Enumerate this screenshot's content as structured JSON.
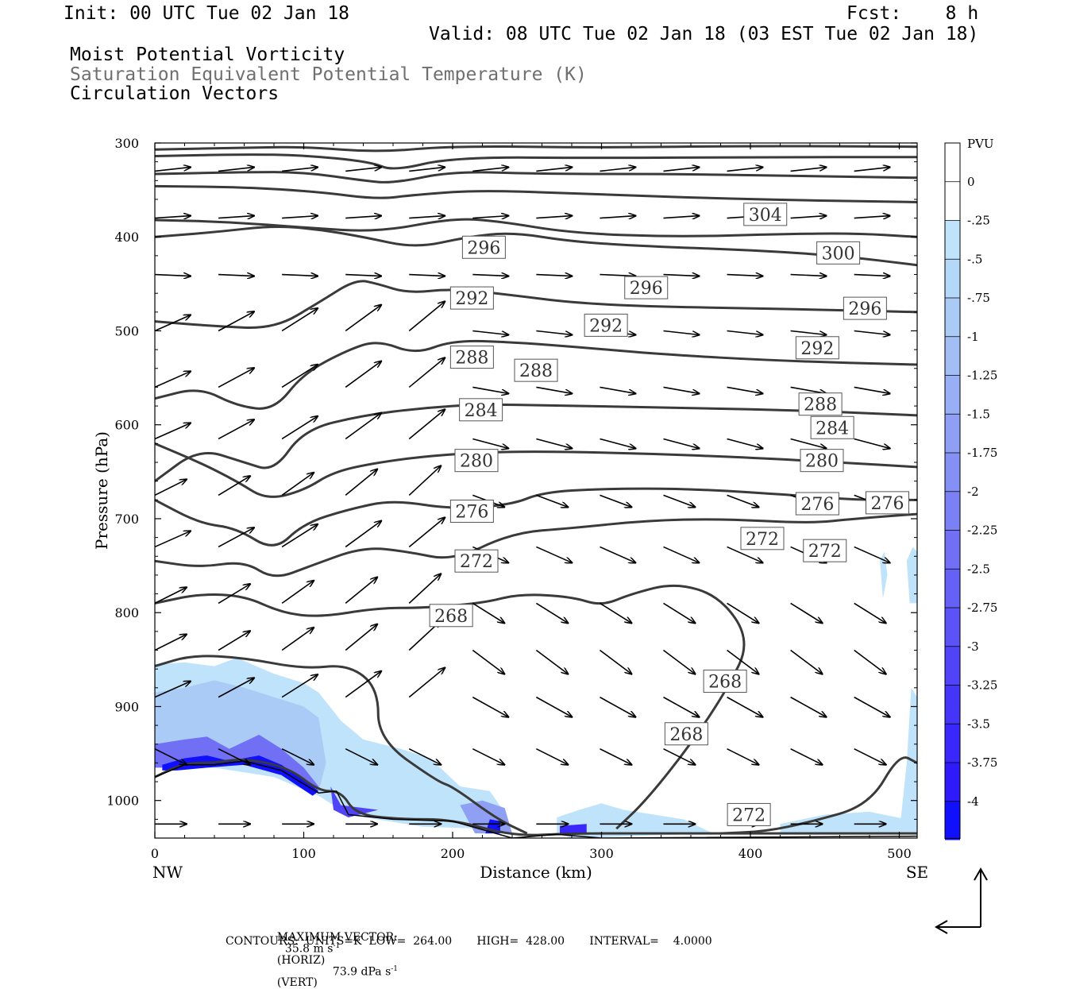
{
  "header": {
    "init": "Init: 00 UTC Tue 02 Jan 18",
    "fcst": "Fcst:    8 h",
    "valid": "Valid: 08 UTC Tue 02 Jan 18 (03 EST Tue 02 Jan 18)",
    "field1": "Moist Potential Vorticity",
    "field2": "Saturation Equivalent Potential Temperature (K)",
    "field3": "Circulation Vectors"
  },
  "footer": {
    "max_vector_label": "MAXIMUM VECTOR:",
    "max_horiz_value": "35.8 m s",
    "max_horiz_exp": "-1",
    "max_horiz_unit": "(HORIZ)",
    "max_vert_value": "73.9 dPa s",
    "max_vert_exp": "-1",
    "max_vert_unit": "(VERT)",
    "contours": "CONTOURS:  UNITS=K  LOW=  264.00       HIGH=  428.00       INTERVAL=    4.0000"
  },
  "colors": {
    "contour": "#3a3a3a",
    "vector": "#000000",
    "pv_light": "#bfe3fa",
    "pv_dark": "#1010ff"
  },
  "chart_data": {
    "type": "contour cross-section",
    "xlabel": "Distance (km)",
    "ylabel": "Pressure (hPa)",
    "x_ticks": [
      0,
      100,
      200,
      300,
      400,
      500
    ],
    "y_ticks": [
      300,
      400,
      500,
      600,
      700,
      800,
      900,
      1000
    ],
    "xlim": [
      0,
      512
    ],
    "ylim": [
      300,
      1040
    ],
    "y_scale": "linear, inverted (pressure decreasing upward)",
    "x_endpoints": {
      "left": "NW",
      "right": "SE"
    },
    "theta_es_contour_labels": [
      {
        "text": "304",
        "x": 410,
        "p": 376
      },
      {
        "text": "300",
        "x": 459,
        "p": 417
      },
      {
        "text": "296",
        "x": 221,
        "p": 411
      },
      {
        "text": "296",
        "x": 330,
        "p": 454
      },
      {
        "text": "296",
        "x": 477,
        "p": 476
      },
      {
        "text": "292",
        "x": 213,
        "p": 465
      },
      {
        "text": "292",
        "x": 303,
        "p": 494
      },
      {
        "text": "292",
        "x": 445,
        "p": 518
      },
      {
        "text": "288",
        "x": 213,
        "p": 528
      },
      {
        "text": "288",
        "x": 256,
        "p": 542
      },
      {
        "text": "288",
        "x": 447,
        "p": 578
      },
      {
        "text": "284",
        "x": 219,
        "p": 584
      },
      {
        "text": "284",
        "x": 455,
        "p": 603
      },
      {
        "text": "280",
        "x": 216,
        "p": 638
      },
      {
        "text": "280",
        "x": 448,
        "p": 638
      },
      {
        "text": "276",
        "x": 213,
        "p": 692
      },
      {
        "text": "276",
        "x": 445,
        "p": 684
      },
      {
        "text": "276",
        "x": 492,
        "p": 683
      },
      {
        "text": "272",
        "x": 216,
        "p": 745
      },
      {
        "text": "272",
        "x": 408,
        "p": 721
      },
      {
        "text": "272",
        "x": 450,
        "p": 734
      },
      {
        "text": "268",
        "x": 199,
        "p": 803
      },
      {
        "text": "268",
        "x": 383,
        "p": 873
      },
      {
        "text": "268",
        "x": 357,
        "p": 929
      },
      {
        "text": "272",
        "x": 399,
        "p": 1015
      }
    ],
    "pv_colorbar": {
      "title": "PVU",
      "levels": [
        "0",
        "-.25",
        "-.5",
        "-.75",
        "-1",
        "-1.25",
        "-1.5",
        "-1.75",
        "-2",
        "-2.25",
        "-2.5",
        "-2.75",
        "-3",
        "-3.25",
        "-3.5",
        "-3.75",
        "-4"
      ],
      "colors": [
        "#ffffff",
        "#bfe3fa",
        "#b4d8f8",
        "#aacbf6",
        "#a2bef5",
        "#98aef5",
        "#8e9ff4",
        "#8590f4",
        "#7b80f4",
        "#7170f5",
        "#6661f6",
        "#5b52f7",
        "#5043f8",
        "#4535f9",
        "#3a27fb",
        "#2f1afc",
        "#1010ff"
      ]
    },
    "series": [
      {
        "name": "Moist Potential Vorticity",
        "kind": "filled contours (PVU)"
      },
      {
        "name": "Saturation Equivalent Potential Temperature (K)",
        "kind": "line contours",
        "interval": 4,
        "low": 264,
        "high": 428
      },
      {
        "name": "Circulation Vectors",
        "kind": "vectors",
        "max_horiz": 35.8,
        "max_vert": 73.9
      }
    ]
  }
}
